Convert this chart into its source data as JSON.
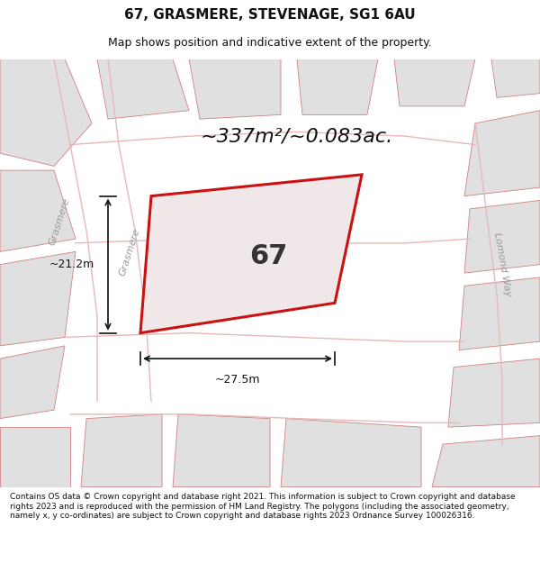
{
  "title_line1": "67, GRASMERE, STEVENAGE, SG1 6AU",
  "title_line2": "Map shows position and indicative extent of the property.",
  "area_text": "~337m²/~0.083ac.",
  "label_67": "67",
  "dim_width": "~27.5m",
  "dim_height": "~21.2m",
  "footer_text": "Contains OS data © Crown copyright and database right 2021. This information is subject to Crown copyright and database rights 2023 and is reproduced with the permission of HM Land Registry. The polygons (including the associated geometry, namely x, y co-ordinates) are subject to Crown copyright and database rights 2023 Ordnance Survey 100026316.",
  "bg_color": "#ffffff",
  "map_bg": "#ffffff",
  "plot_fill": "#f0e8e8",
  "plot_edge": "#cc1111",
  "block_fill": "#e0e0e0",
  "block_edge": "#d08080",
  "street_label_color": "#999999",
  "title_color": "#111111",
  "footer_color": "#111111",
  "title_fontsize": 11,
  "subtitle_fontsize": 9,
  "area_fontsize": 16,
  "label_fontsize": 22,
  "dim_fontsize": 9,
  "street_fontsize": 8,
  "footer_fontsize": 6.5
}
